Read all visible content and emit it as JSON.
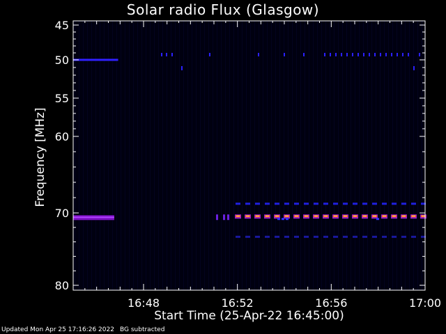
{
  "chart_data": {
    "type": "heatmap",
    "title": "Solar radio Flux (Glasgow)",
    "xlabel": "Start Time (25-Apr-22 16:45:00)",
    "ylabel": "Frequency [MHz]",
    "x_range_minutes": [
      16.75,
      17.0
    ],
    "x_tick_labels": [
      "16:48",
      "16:52",
      "16:56",
      "17:00"
    ],
    "x_tick_values": [
      "16:48",
      "16:52",
      "16:56",
      "17:00"
    ],
    "y_tick_labels": [
      "45",
      "50",
      "55",
      "60",
      "70",
      "80"
    ],
    "y_tick_values": [
      45,
      50,
      55,
      60,
      70,
      80
    ],
    "ylim": [
      45,
      80
    ],
    "y_inverted": true,
    "background_color": "#000010",
    "features": [
      {
        "name": "50 MHz line (early)",
        "time_start": "16:45:00",
        "time_end": "16:46:55",
        "freq": 50.0,
        "intensity": "medium",
        "color": "#3020ff"
      },
      {
        "name": "50 MHz dashes",
        "time_start": "16:48:50",
        "time_end": "17:00:00",
        "freq": 49.5,
        "intensity": "low",
        "color": "#2a20ff"
      },
      {
        "name": "70.5 MHz band (early)",
        "time_start": "16:45:00",
        "time_end": "16:46:45",
        "freq": 70.7,
        "intensity": "medium",
        "color": "#7a10c0"
      },
      {
        "name": "70.5 MHz dashed (strong)",
        "time_start": "16:51:00",
        "time_end": "17:00:00",
        "freq": 70.5,
        "intensity": "high",
        "color": "#ff5020"
      },
      {
        "name": "68.8 MHz dashes",
        "time_start": "16:51:30",
        "time_end": "17:00:00",
        "freq": 68.8,
        "intensity": "low",
        "color": "#2020e0"
      },
      {
        "name": "73.3 MHz dashes",
        "time_start": "16:51:30",
        "time_end": "17:00:00",
        "freq": 73.3,
        "intensity": "low",
        "color": "#1a18a0"
      }
    ]
  },
  "footer": {
    "updated": "Updated Mon Apr 25 17:16:26 2022",
    "note": "BG subtracted"
  },
  "colors": {
    "axis": "#ffffff",
    "text": "#ffffff",
    "page_background": "#000000"
  }
}
